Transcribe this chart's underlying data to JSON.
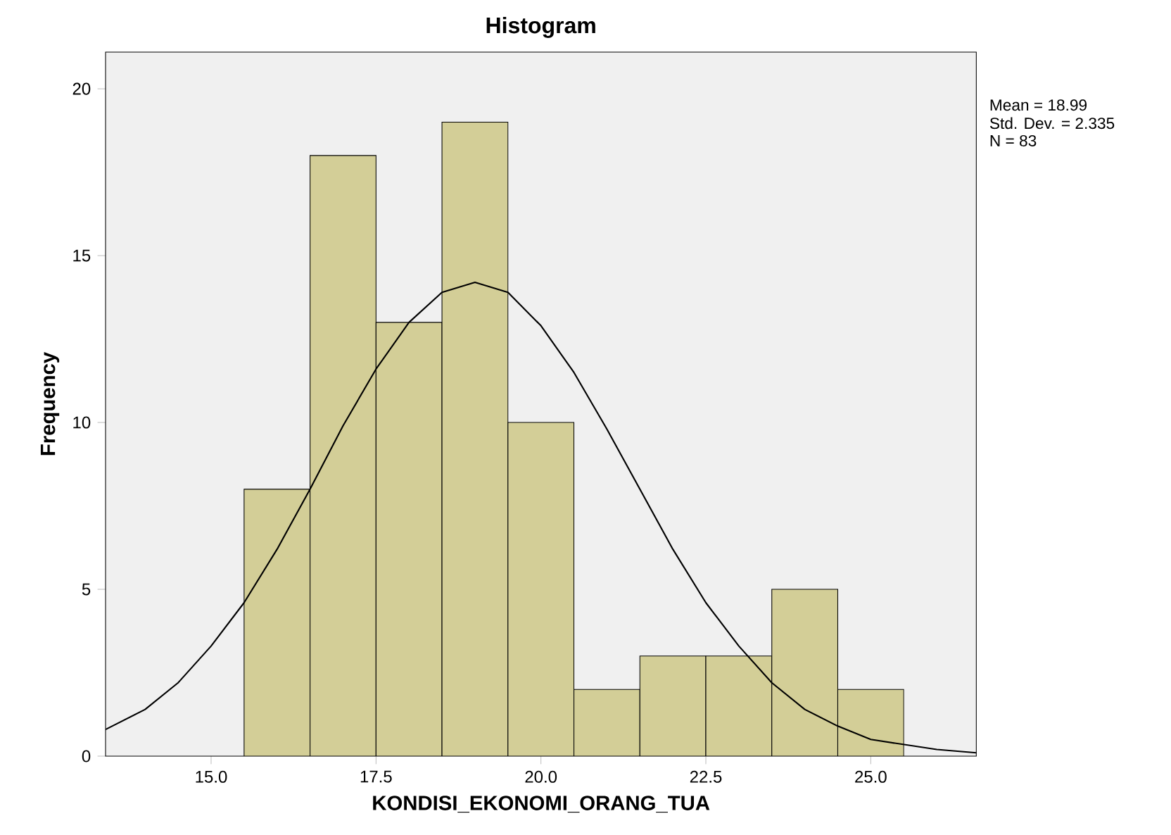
{
  "chart_data": {
    "type": "histogram",
    "title": "Histogram",
    "xlabel": "KONDISI_EKONOMI_ORANG_TUA",
    "ylabel": "Frequency",
    "annotations": [
      "Mean = 18.99",
      "Std. Dev. = 2.335",
      "N = 83"
    ],
    "xlim": [
      13.4,
      26.6
    ],
    "ylim": [
      0,
      21.1
    ],
    "xticks": [
      {
        "value": 15,
        "label": "15.0"
      },
      {
        "value": 17.5,
        "label": "17.5"
      },
      {
        "value": 20,
        "label": "20.0"
      },
      {
        "value": 22.5,
        "label": "22.5"
      },
      {
        "value": 25,
        "label": "25.0"
      }
    ],
    "yticks": [
      0,
      5,
      10,
      15,
      20
    ],
    "grid": false,
    "series": [
      {
        "color": "#d3ce97",
        "bins": [
          15.5,
          16.5,
          17.5,
          18.5,
          19.5,
          20.5,
          21.5,
          22.5,
          23.5,
          24.5,
          25.5
        ],
        "values": [
          8,
          18,
          13,
          19,
          10,
          2,
          3,
          3,
          5,
          2
        ]
      },
      {
        "type": "line",
        "color": "#000000",
        "x": [
          13.4,
          14,
          14.5,
          15,
          15.5,
          16,
          16.5,
          17,
          17.5,
          18,
          18.5,
          19,
          19.5,
          20,
          20.5,
          21,
          21.5,
          22,
          22.5,
          23,
          23.5,
          24,
          24.5,
          25,
          26,
          26.6
        ],
        "values": [
          0.8,
          1.4,
          2.2,
          3.3,
          4.6,
          6.2,
          8.0,
          9.9,
          11.6,
          13.0,
          13.9,
          14.2,
          13.9,
          12.9,
          11.5,
          9.8,
          8.0,
          6.2,
          4.6,
          3.3,
          2.2,
          1.4,
          0.9,
          0.5,
          0.2,
          0.1
        ]
      }
    ]
  }
}
